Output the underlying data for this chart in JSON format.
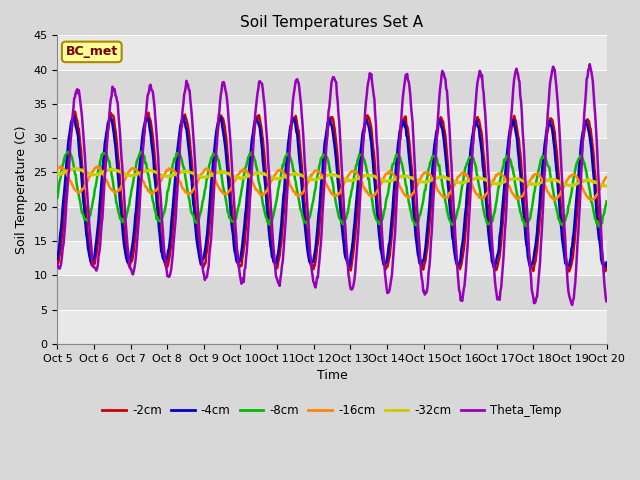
{
  "title": "Soil Temperatures Set A",
  "xlabel": "Time",
  "ylabel": "Soil Temperature (C)",
  "ylim": [
    0,
    45
  ],
  "annotation": "BC_met",
  "legend_labels": [
    "-2cm",
    "-4cm",
    "-8cm",
    "-16cm",
    "-32cm",
    "Theta_Temp"
  ],
  "legend_colors": [
    "#cc0000",
    "#0000cc",
    "#00bb00",
    "#ff8800",
    "#cccc00",
    "#9900bb"
  ],
  "line_widths": [
    1.8,
    1.8,
    1.8,
    1.8,
    2.2,
    1.8
  ],
  "tick_labels": [
    "Oct 5",
    "Oct 6",
    "Oct 7",
    "Oct 8",
    "Oct 9",
    "Oct 10",
    "Oct 11",
    "Oct 12",
    "Oct 13",
    "Oct 14",
    "Oct 15",
    "Oct 16",
    "Oct 17",
    "Oct 18",
    "Oct 19",
    "Oct 20"
  ],
  "fig_bg": "#d8d8d8",
  "plot_bg_light": "#e8e8e8",
  "plot_bg_dark": "#d8d8d8",
  "title_fontsize": 11,
  "axis_label_fontsize": 9,
  "tick_fontsize": 8
}
